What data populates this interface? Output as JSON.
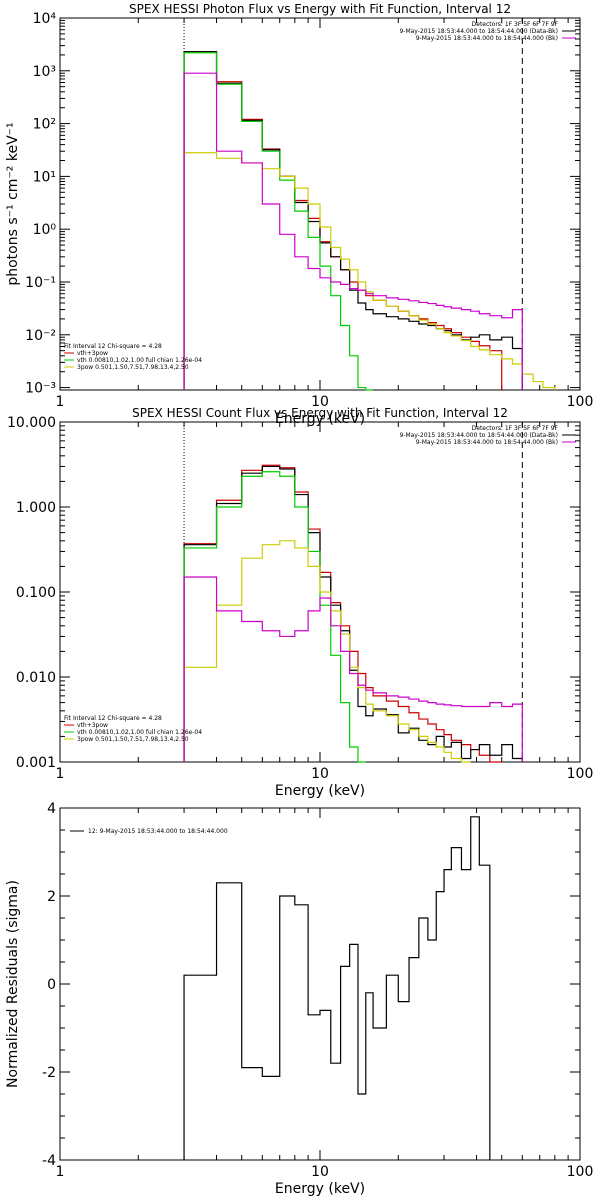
{
  "chart_data": [
    {
      "type": "line",
      "title": "SPEX HESSI Photon Flux vs Energy with Fit Function, Interval 12",
      "xlabel": "Energy (keV)",
      "ylabel": "photons s⁻¹ cm⁻² keV⁻¹",
      "xscale": "log",
      "yscale": "log",
      "xlim": [
        1,
        100
      ],
      "ylim": [
        0.0009,
        10000
      ],
      "xticks": [
        {
          "v": 1,
          "label": "1"
        },
        {
          "v": 10,
          "label": "10"
        },
        {
          "v": 100,
          "label": "100"
        }
      ],
      "yticks": [
        {
          "v": 0.001,
          "label": "10⁻³"
        },
        {
          "v": 0.01,
          "label": "10⁻²"
        },
        {
          "v": 0.1,
          "label": "10⁻¹"
        },
        {
          "v": 1,
          "label": "10⁰"
        },
        {
          "v": 10,
          "label": "10¹"
        },
        {
          "v": 100,
          "label": "10²"
        },
        {
          "v": 1000,
          "label": "10³"
        },
        {
          "v": 10000,
          "label": "10⁴"
        }
      ],
      "vlines": [
        {
          "x": 3.0,
          "style": "dotted"
        },
        {
          "x": 60.0,
          "style": "dashed"
        }
      ],
      "legend_top": [
        {
          "text": "Detectors: 1F 3F 5F 6F 7F 9F",
          "color": ""
        },
        {
          "text": "9-May-2015 18:53:44.000 to 18:54:44.000 (Data-Bk)",
          "color": "#000000"
        },
        {
          "text": "9-May-2015 18:53:44.000 to 18:54:44.000 (Bk)",
          "color": "#cc00cc"
        }
      ],
      "legend_bottom": [
        {
          "text": "Fit Interval 12   Chi-square = 4.28",
          "color": ""
        },
        {
          "text": "vth+3pow",
          "color": "#cc0000"
        },
        {
          "text": "vth 0.00810,1.02,1.00  full chian 1.26e-04",
          "color": "#00cc00"
        },
        {
          "text": "3pow 0.501,1.50,7.51,7.98,13.4,2.50",
          "color": "#cccc00"
        }
      ],
      "edges": [
        3.0,
        4.0,
        5.0,
        6.0,
        7.0,
        8.0,
        9.0,
        10.0,
        11.0,
        12.0,
        13.0,
        14.0,
        15.0,
        16.0,
        18.0,
        20.0,
        22.0,
        24.0,
        26.0,
        28.0,
        30.0,
        32.0,
        35.0,
        38.0,
        41.0,
        45.0,
        50.0,
        55.0,
        60.0,
        66.0,
        72.0,
        80.0
      ],
      "series": [
        {
          "name": "vth+3pow",
          "color": "#cc0000",
          "values": [
            2300,
            620,
            120,
            33,
            10,
            3.5,
            1.6,
            0.58,
            0.3,
            0.17,
            0.1,
            0.07,
            0.055,
            0.045,
            0.035,
            0.028,
            0.023,
            0.02,
            0.017,
            0.015,
            0.013,
            0.011,
            0.009,
            0.0075,
            0.0062,
            0.005,
            null,
            null,
            null,
            null,
            null
          ]
        },
        {
          "name": "data",
          "color": "#000000",
          "values": [
            2300,
            580,
            115,
            32,
            10,
            3.2,
            1.4,
            0.55,
            0.3,
            0.17,
            0.07,
            0.04,
            0.03,
            0.025,
            0.022,
            0.02,
            0.018,
            0.016,
            0.015,
            0.013,
            0.012,
            0.01,
            0.008,
            0.009,
            0.01,
            0.008,
            0.009,
            0.0055,
            null,
            null,
            null
          ]
        },
        {
          "name": "vth",
          "color": "#00cc00",
          "values": [
            2200,
            560,
            110,
            30,
            8.5,
            2.2,
            0.7,
            0.2,
            0.055,
            0.015,
            0.004,
            0.001,
            0.0005,
            null,
            null,
            null,
            null,
            null,
            null,
            null,
            null,
            null,
            null,
            null,
            null,
            null,
            null,
            null,
            null,
            null,
            null
          ]
        },
        {
          "name": "3pow",
          "color": "#cccc00",
          "values": [
            28,
            22,
            18,
            14,
            10,
            6,
            3,
            1.1,
            0.45,
            0.27,
            0.17,
            0.1,
            0.065,
            0.045,
            0.035,
            0.028,
            0.023,
            0.019,
            0.016,
            0.013,
            0.011,
            0.0095,
            0.0078,
            0.006,
            0.0052,
            0.0042,
            0.0035,
            0.0028,
            0.0018,
            0.0013,
            0.001
          ]
        },
        {
          "name": "background",
          "color": "#cc00cc",
          "values": [
            900,
            30,
            18,
            3,
            0.8,
            0.3,
            0.18,
            0.12,
            0.1,
            0.09,
            0.075,
            0.07,
            0.06,
            0.055,
            0.05,
            0.047,
            0.044,
            0.041,
            0.039,
            0.036,
            0.034,
            0.032,
            0.03,
            0.028,
            0.025,
            0.023,
            0.021,
            0.03,
            null,
            null,
            null
          ]
        }
      ]
    },
    {
      "type": "line",
      "title": "SPEX HESSI Count Flux vs Energy with Fit Function, Interval 12",
      "xlabel": "Energy (keV)",
      "ylabel": "",
      "xscale": "log",
      "yscale": "log",
      "xlim": [
        1,
        100
      ],
      "ylim": [
        0.001,
        10
      ],
      "xticks": [
        {
          "v": 1,
          "label": "1"
        },
        {
          "v": 10,
          "label": "10"
        },
        {
          "v": 100,
          "label": "100"
        }
      ],
      "yticks": [
        {
          "v": 0.001,
          "label": "0.001"
        },
        {
          "v": 0.01,
          "label": "0.010"
        },
        {
          "v": 0.1,
          "label": "0.100"
        },
        {
          "v": 1,
          "label": "1.000"
        },
        {
          "v": 10,
          "label": "10.000"
        }
      ],
      "vlines": [
        {
          "x": 3.0,
          "style": "dotted"
        },
        {
          "x": 60.0,
          "style": "dashed"
        }
      ],
      "legend_top": [
        {
          "text": "Detectors: 1F 3F 5F 6F 7F 9F",
          "color": ""
        },
        {
          "text": "9-May-2015 18:53:44.000 to 18:54:44.000 (Data-Bk)",
          "color": "#000000"
        },
        {
          "text": "9-May-2015 18:53:44.000 to 18:54:44.000 (Bk)",
          "color": "#cc00cc"
        }
      ],
      "legend_bottom": [
        {
          "text": "Fit Interval 12   Chi-square = 4.28",
          "color": ""
        },
        {
          "text": "vth+3pow",
          "color": "#cc0000"
        },
        {
          "text": "vth 0.00810,1.02,1.00  full chian 1.26e-04",
          "color": "#00cc00"
        },
        {
          "text": "3pow 0.501,1.50,7.51,7.98,13.4,2.50",
          "color": "#cccc00"
        }
      ],
      "edges": [
        3.0,
        4.0,
        5.0,
        6.0,
        7.0,
        8.0,
        9.0,
        10.0,
        11.0,
        12.0,
        13.0,
        14.0,
        15.0,
        16.0,
        18.0,
        20.0,
        22.0,
        24.0,
        26.0,
        28.0,
        30.0,
        32.0,
        35.0,
        38.0,
        41.0,
        45.0,
        50.0,
        55.0,
        60.0
      ],
      "series": [
        {
          "name": "vth+3pow",
          "color": "#cc0000",
          "values": [
            0.37,
            1.2,
            2.7,
            3.1,
            2.9,
            1.5,
            0.55,
            0.17,
            0.075,
            0.04,
            0.02,
            0.011,
            0.0075,
            0.006,
            0.0052,
            0.0045,
            0.0038,
            0.0032,
            0.0028,
            0.0024,
            0.0021,
            0.0018,
            0.0016,
            0.0014,
            0.0012,
            0.001,
            null,
            null
          ]
        },
        {
          "name": "data",
          "color": "#000000",
          "values": [
            0.36,
            1.1,
            2.5,
            3.0,
            2.8,
            1.4,
            0.5,
            0.15,
            0.07,
            0.035,
            0.012,
            0.0045,
            0.0035,
            0.0042,
            0.0036,
            0.0022,
            0.0025,
            0.0018,
            0.0016,
            0.002,
            0.0015,
            0.0017,
            0.0011,
            0.0014,
            0.0016,
            0.0012,
            0.0016,
            0.0011
          ]
        },
        {
          "name": "vth",
          "color": "#00cc00",
          "values": [
            0.33,
            1.0,
            2.3,
            2.6,
            2.3,
            1.0,
            0.3,
            0.07,
            0.018,
            0.005,
            0.0015,
            0.0004,
            null,
            null,
            null,
            null,
            null,
            null,
            null,
            null,
            null,
            null,
            null,
            null,
            null,
            null,
            null,
            null
          ]
        },
        {
          "name": "3pow",
          "color": "#cccc00",
          "values": [
            0.013,
            0.07,
            0.25,
            0.36,
            0.4,
            0.33,
            0.2,
            0.1,
            0.06,
            0.032,
            0.013,
            0.0075,
            0.0048,
            0.004,
            0.0035,
            0.0028,
            0.0024,
            0.002,
            0.0017,
            0.0015,
            0.0013,
            0.0011,
            0.001,
            null,
            null,
            null,
            null,
            null
          ]
        },
        {
          "name": "background",
          "color": "#cc00cc",
          "values": [
            0.15,
            0.06,
            0.045,
            0.035,
            0.03,
            0.035,
            0.06,
            0.085,
            0.04,
            0.02,
            0.011,
            0.008,
            0.007,
            0.0065,
            0.006,
            0.0058,
            0.0055,
            0.0052,
            0.005,
            0.0048,
            0.0047,
            0.0046,
            0.0045,
            0.0045,
            0.0045,
            0.005,
            0.0045,
            0.0048
          ]
        }
      ]
    },
    {
      "type": "line",
      "title": "",
      "xlabel": "Energy (keV)",
      "ylabel": "Normalized Residuals (sigma)",
      "xscale": "log",
      "yscale": "linear",
      "xlim": [
        1,
        100
      ],
      "ylim": [
        -4,
        4
      ],
      "xticks": [
        {
          "v": 1,
          "label": "1"
        },
        {
          "v": 10,
          "label": "10"
        },
        {
          "v": 100,
          "label": "100"
        }
      ],
      "yticks": [
        {
          "v": -4,
          "label": "-4"
        },
        {
          "v": -2,
          "label": "-2"
        },
        {
          "v": 0,
          "label": "0"
        },
        {
          "v": 2,
          "label": "2"
        },
        {
          "v": 4,
          "label": "4"
        }
      ],
      "vlines": [],
      "legend_top": [
        {
          "text": "12:  9-May-2015 18:53:44.000 to 18:54:44.000",
          "color": "#000000"
        }
      ],
      "legend_bottom": [],
      "edges": [
        3.0,
        4.0,
        5.0,
        6.0,
        7.0,
        8.0,
        9.0,
        10.0,
        11.0,
        12.0,
        13.0,
        14.0,
        15.0,
        16.0,
        18.0,
        20.0,
        22.0,
        24.0,
        26.0,
        28.0,
        30.0,
        32.0,
        35.0,
        38.0,
        41.0,
        45.0,
        50.0,
        55.0,
        60.0
      ],
      "series": [
        {
          "name": "residuals",
          "color": "#000000",
          "values": [
            0.2,
            2.3,
            -1.9,
            -2.1,
            2.0,
            1.8,
            -0.7,
            -0.6,
            -1.8,
            0.4,
            0.9,
            -2.5,
            -0.2,
            -1.0,
            0.2,
            -0.4,
            0.6,
            1.5,
            1.0,
            2.1,
            2.6,
            3.1,
            2.6,
            3.8,
            2.7,
            null,
            null,
            null
          ]
        }
      ]
    }
  ]
}
